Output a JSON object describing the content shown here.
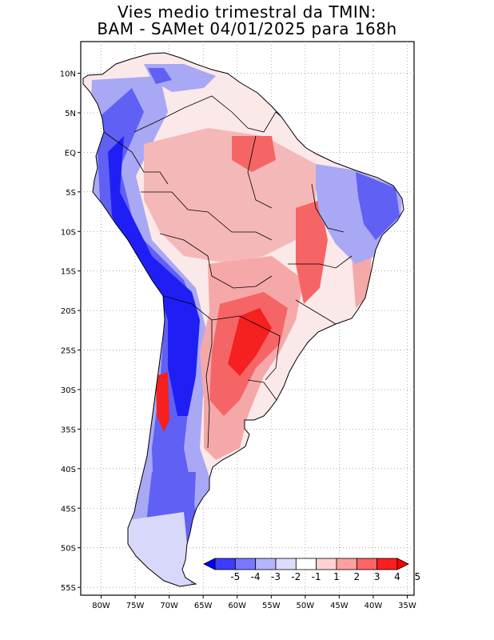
{
  "title": {
    "line1": "Vies medio trimestral da TMIN:",
    "line2": "BAM - SAMet 04/01/2025  para 168h"
  },
  "map": {
    "lon_range": [
      -83,
      -34
    ],
    "lat_range": [
      -56,
      14
    ],
    "lat_ticks": [
      {
        "value": 10,
        "label": "10N"
      },
      {
        "value": 5,
        "label": "5N"
      },
      {
        "value": 0,
        "label": "EQ"
      },
      {
        "value": -5,
        "label": "5S"
      },
      {
        "value": -10,
        "label": "10S"
      },
      {
        "value": -15,
        "label": "15S"
      },
      {
        "value": -20,
        "label": "20S"
      },
      {
        "value": -25,
        "label": "25S"
      },
      {
        "value": -30,
        "label": "30S"
      },
      {
        "value": -35,
        "label": "35S"
      },
      {
        "value": -40,
        "label": "40S"
      },
      {
        "value": -45,
        "label": "45S"
      },
      {
        "value": -50,
        "label": "50S"
      },
      {
        "value": -55,
        "label": "55S"
      }
    ],
    "lon_ticks": [
      {
        "value": -80,
        "label": "80W"
      },
      {
        "value": -75,
        "label": "75W"
      },
      {
        "value": -70,
        "label": "70W"
      },
      {
        "value": -65,
        "label": "65W"
      },
      {
        "value": -60,
        "label": "60W"
      },
      {
        "value": -55,
        "label": "55W"
      },
      {
        "value": -50,
        "label": "50W"
      },
      {
        "value": -45,
        "label": "45W"
      },
      {
        "value": -40,
        "label": "40W"
      },
      {
        "value": -35,
        "label": "35W"
      }
    ],
    "colors": {
      "deep_blue": "#1f1ff5",
      "mid_blue": "#6060f5",
      "light_blue": "#a8a8f5",
      "pale_blue": "#d8d8fa",
      "pale_red": "#fadada",
      "light_red": "#f5a8a8",
      "mid_red": "#f56565",
      "deep_red": "#f52020"
    }
  },
  "colorbar": {
    "labels": [
      "-5",
      "-4",
      "-3",
      "-2",
      "-1",
      "1",
      "2",
      "3",
      "4",
      "5"
    ],
    "colors": [
      "#0000ff",
      "#3c3cff",
      "#7878ff",
      "#b4b4ff",
      "#dcdcff",
      "#ffffff",
      "#ffd2d2",
      "#ffa0a0",
      "#ff6464",
      "#ff1e1e",
      "#ff0000"
    ]
  }
}
